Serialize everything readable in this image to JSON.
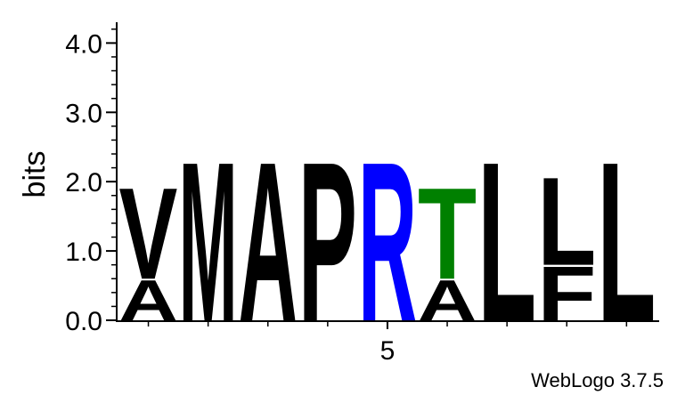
{
  "chart_data": {
    "type": "sequence-logo",
    "ylabel": "bits",
    "ylim": [
      0,
      4.3
    ],
    "yticks": [
      {
        "value": 0,
        "label": "0.0"
      },
      {
        "value": 1,
        "label": "1.0"
      },
      {
        "value": 2,
        "label": "2.0"
      },
      {
        "value": 3,
        "label": "3.0"
      },
      {
        "value": 4,
        "label": "4.0"
      }
    ],
    "xtick_labels": [
      {
        "position": 5,
        "label": "5"
      }
    ],
    "footer": "WebLogo 3.7.5",
    "colors": {
      "black": "#000000",
      "blue": "#0000ff",
      "green": "#008000"
    },
    "positions": [
      {
        "pos": 1,
        "letters": [
          {
            "letter": "A",
            "bits": 0.6,
            "color": "black"
          },
          {
            "letter": "V",
            "bits": 1.35,
            "color": "black"
          }
        ]
      },
      {
        "pos": 2,
        "letters": [
          {
            "letter": "M",
            "bits": 2.35,
            "color": "black"
          }
        ]
      },
      {
        "pos": 3,
        "letters": [
          {
            "letter": "A",
            "bits": 2.35,
            "color": "black"
          }
        ]
      },
      {
        "pos": 4,
        "letters": [
          {
            "letter": "P",
            "bits": 2.35,
            "color": "black"
          }
        ]
      },
      {
        "pos": 5,
        "letters": [
          {
            "letter": "R",
            "bits": 2.35,
            "color": "blue"
          }
        ]
      },
      {
        "pos": 6,
        "letters": [
          {
            "letter": "A",
            "bits": 0.6,
            "color": "black"
          },
          {
            "letter": "T",
            "bits": 1.35,
            "color": "green"
          }
        ]
      },
      {
        "pos": 7,
        "letters": [
          {
            "letter": "L",
            "bits": 2.35,
            "color": "black"
          }
        ]
      },
      {
        "pos": 8,
        "letters": [
          {
            "letter": "F",
            "bits": 0.8,
            "color": "black"
          },
          {
            "letter": "L",
            "bits": 1.3,
            "color": "black"
          }
        ]
      },
      {
        "pos": 9,
        "letters": [
          {
            "letter": "L",
            "bits": 2.35,
            "color": "black"
          }
        ]
      }
    ]
  }
}
